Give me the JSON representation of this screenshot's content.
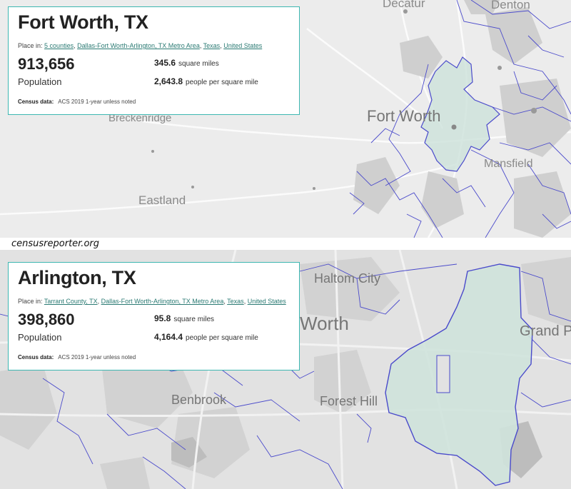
{
  "top_map": {
    "card": {
      "title": "Fort Worth, TX",
      "place_in_label": "Place in:",
      "place_in_links": [
        "5 counties",
        "Dallas-Fort Worth-Arlington, TX Metro Area",
        "Texas",
        "United States"
      ],
      "population_value": "913,656",
      "population_label": "Population",
      "area_value": "345.6",
      "area_unit": "square miles",
      "density_value": "2,643.8",
      "density_unit": "people per square mile",
      "census_label": "Census data:",
      "census_value": "ACS 2019 1-year unless noted"
    },
    "labels": {
      "decatur": "Decatur",
      "denton": "Denton",
      "fort_worth": "Fort Worth",
      "breckenridge": "Breckenridge",
      "eastland": "Eastland",
      "mansfield": "Mansfield"
    }
  },
  "caption": "censusreporter.org",
  "bottom_map": {
    "card": {
      "title": "Arlington, TX",
      "place_in_label": "Place in:",
      "place_in_links": [
        "Tarrant County, TX",
        "Dallas-Fort Worth-Arlington, TX Metro Area",
        "Texas",
        "United States"
      ],
      "population_value": "398,860",
      "population_label": "Population",
      "area_value": "95.8",
      "area_unit": "square miles",
      "density_value": "4,164.4",
      "density_unit": "people per square mile",
      "census_label": "Census data:",
      "census_value": "ACS 2019 1-year unless noted"
    },
    "labels": {
      "haltom_city": "Haltom City",
      "worth": "Worth",
      "grand_pr": "Grand Pr",
      "benbrook": "Benbrook",
      "forest_hill": "Forest Hill"
    }
  },
  "colors": {
    "card_border": "#3db7b1",
    "link": "#2a7a73",
    "boundary": "#4a4acb",
    "highlight_fill": "#cfe3dc"
  }
}
